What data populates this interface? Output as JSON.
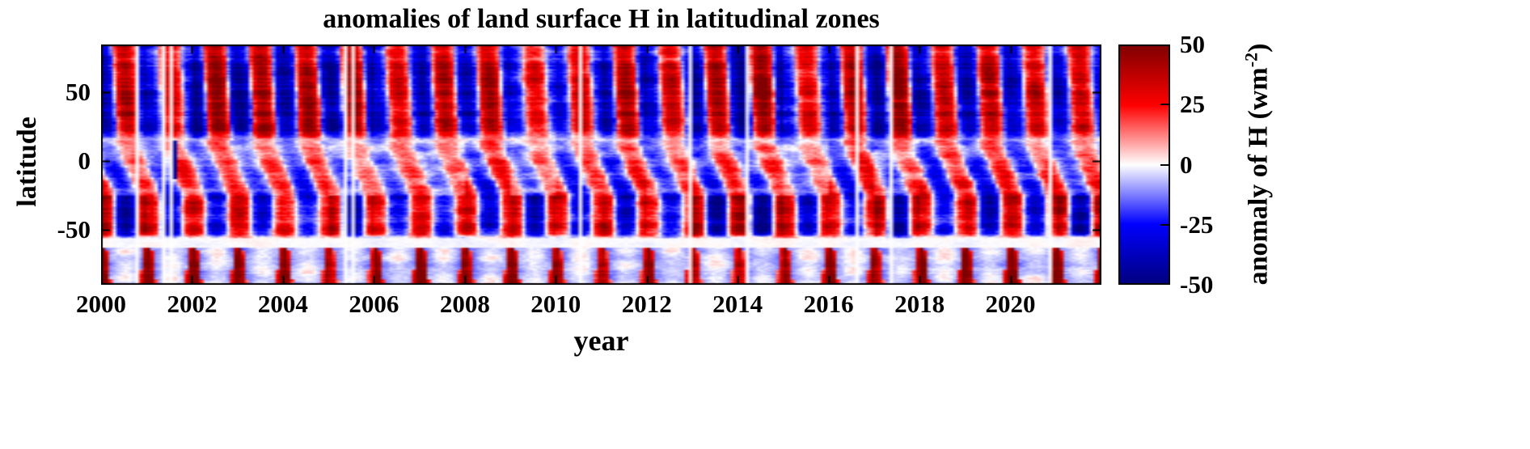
{
  "chart_data": {
    "type": "heatmap",
    "title": "anomalies of land surface H in latitudinal zones",
    "xlabel": "year",
    "ylabel": "latitude",
    "x_domain": [
      2000,
      2022
    ],
    "x_ticks": [
      2000,
      2002,
      2004,
      2006,
      2008,
      2010,
      2012,
      2014,
      2016,
      2018,
      2020
    ],
    "y_domain": [
      -90,
      85
    ],
    "y_ticks": [
      50,
      0,
      -50
    ],
    "grid_on": false,
    "axis_color": "#000000",
    "text_color": "#000000",
    "colorbar": {
      "label_prefix": "anomaly of H (wm",
      "label_sup": "-2",
      "label_suffix": ")",
      "ticks": [
        50,
        25,
        0,
        -25,
        -50
      ],
      "vmin": -50,
      "vmax": 50,
      "colors": {
        "max": "#800000",
        "mid_pos": "#FF0000",
        "zero": "#FFFFFF",
        "mid_neg": "#0000FF",
        "min": "#000080"
      }
    },
    "pattern": {
      "seed": 42,
      "months": 264,
      "lat_top": 85,
      "lat_bottom": -90,
      "noise_amp": 9,
      "jitter_amp": 4,
      "sharpen": 0.6,
      "zones": {
        "nh": {
          "lat_min": 15,
          "amp": 42,
          "phase": 0.54,
          "tilt": 0.0015,
          "ramp_start": 13,
          "ramp_width": 10,
          "polar_fade_lat": 72,
          "polar_fade": 0.8
        },
        "tropics": {
          "lat_min": -25,
          "lat_max": 15,
          "amp_base": 14,
          "amp_slope": 0.3,
          "phase": 0.54,
          "tilt": 0.0125
        },
        "sh": {
          "lat_min": -56,
          "lat_max": -25,
          "amp": 38,
          "phase": 0.04
        },
        "gap": {
          "lat_min": -63,
          "lat_max": -56
        },
        "antarctic": {
          "lat_max": -63,
          "bg": -7,
          "spike_phase": 0.03,
          "spike_base_threshold": 0.86,
          "spike_threshold_slope": 0.5,
          "spike_min": 18,
          "spike_range": 38
        }
      },
      "year_mult_range": [
        0.7,
        1.3
      ],
      "row_gain_range": [
        0.82,
        1.18
      ],
      "missing_stripes": [
        2000.79,
        2001.38,
        2001.54,
        2005.38,
        2005.5,
        2010.54,
        2012.96,
        2014.21,
        2016.63,
        2017.38,
        2020.88
      ],
      "artifact_line": {
        "t": 2001.62,
        "lat_min": -13,
        "lat_max": 15,
        "value": -46
      }
    }
  }
}
